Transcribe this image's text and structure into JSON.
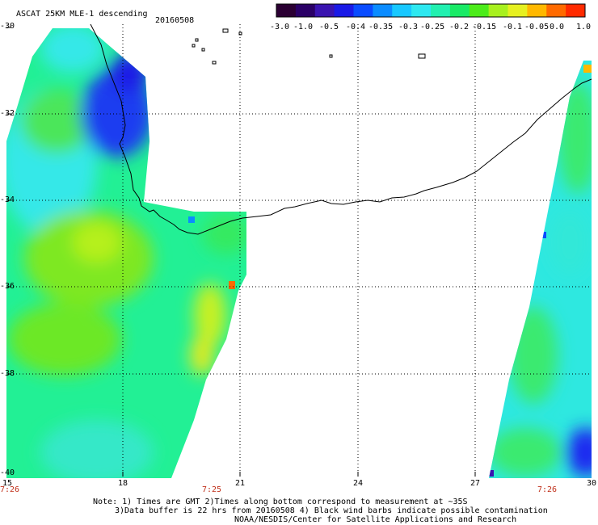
{
  "header": {
    "title": "ASCAT 25KM MLE-1 descending",
    "date": "20160508"
  },
  "colorbar": {
    "colors": [
      "#2b0033",
      "#2a0066",
      "#3a14b0",
      "#1a1ae6",
      "#0a4cff",
      "#0b8cff",
      "#18c8ff",
      "#2ee8f0",
      "#22f0b0",
      "#19ea66",
      "#4cec1a",
      "#a8f01e",
      "#e6f020",
      "#ffb800",
      "#ff6a00",
      "#ff2a00"
    ],
    "labels": [
      "-3.0",
      "-1.0",
      "-0.5",
      "-0.4",
      "-0.35",
      "-0.3",
      "-0.25",
      "-0.2",
      "-0.15",
      "-0.1",
      "-0.05",
      "0.0",
      "1.0"
    ]
  },
  "axes": {
    "lat_labels": [
      "-30",
      "-32",
      "-34",
      "-36",
      "-38",
      "-40"
    ],
    "lon_labels": [
      "15",
      "18",
      "21",
      "24",
      "27",
      "30"
    ],
    "time_labels": [
      "7:26",
      "7:25",
      "7:26"
    ]
  },
  "notes": {
    "line1": "Note: 1) Times are GMT 2)Times along bottom correspond to measurement at ~35S",
    "line2": "3)Data buffer is 22 hrs from 20160508 4) Black wind barbs indicate possible contamination",
    "line3": "NOAA/NESDIS/Center for Satellite Applications and Research"
  }
}
